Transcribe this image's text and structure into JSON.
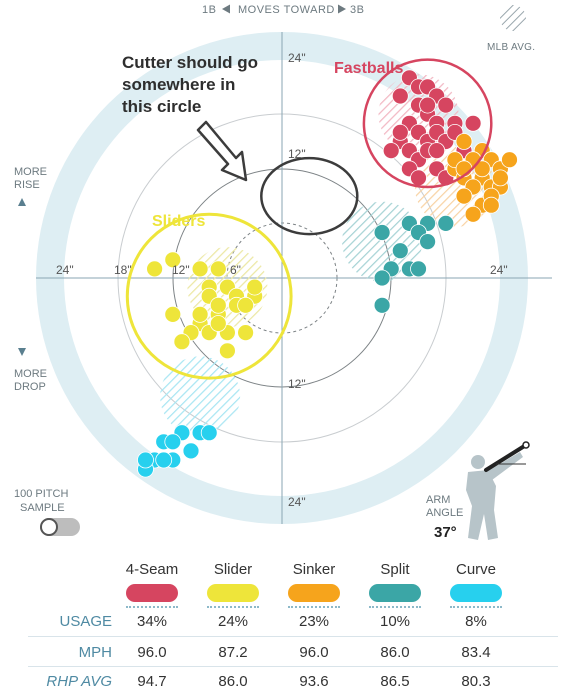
{
  "header": {
    "left": "1B",
    "center": "MOVES TOWARD",
    "right": "3B",
    "left_arrow_icon": "triangle-left-icon",
    "right_arrow_icon": "triangle-right-icon"
  },
  "legend": {
    "mlb_avg": "MLB AVG."
  },
  "side": {
    "more_rise_1": "MORE",
    "more_rise_2": "RISE",
    "more_drop_1": "MORE",
    "more_drop_2": "DROP",
    "sample_1": "100 PITCH",
    "sample_2": "SAMPLE"
  },
  "arm": {
    "label_1": "ARM",
    "label_2": "ANGLE",
    "value": "37°"
  },
  "annotations": {
    "cutter": [
      "Cutter should go",
      "somewhere in",
      "this circle"
    ],
    "fastballs": "Fastballs",
    "sliders": "Sliders"
  },
  "colors": {
    "fourseam": "#d64560",
    "slider": "#eee53a",
    "sinker": "#f6a41c",
    "split": "#3ba6a6",
    "curve": "#27d0ee",
    "field": "#deeef3"
  },
  "chart_data": {
    "type": "scatter",
    "xlabel": "",
    "ylabel": "",
    "x_ticks": [
      "24\"",
      "18\"",
      "12\"",
      "6\"",
      "24\""
    ],
    "y_ticks": [
      "24\"",
      "12\"",
      "12\"",
      "24\""
    ],
    "xlim": [
      -30,
      30
    ],
    "ylim": [
      -30,
      30
    ],
    "series": [
      {
        "name": "4-Seam",
        "color": "#d64560",
        "avg": [
          15,
          18
        ],
        "points": [
          [
            14,
            22
          ],
          [
            15,
            21
          ],
          [
            16,
            21
          ],
          [
            17,
            20
          ],
          [
            13,
            20
          ],
          [
            15,
            19
          ],
          [
            18,
            19
          ],
          [
            16,
            18
          ],
          [
            14,
            17
          ],
          [
            17,
            17
          ],
          [
            19,
            17
          ],
          [
            13,
            15
          ],
          [
            15,
            16
          ],
          [
            16,
            15
          ],
          [
            17,
            16
          ],
          [
            18,
            15
          ],
          [
            14,
            14
          ],
          [
            15,
            13
          ],
          [
            16,
            14
          ],
          [
            19,
            16
          ],
          [
            21,
            17
          ],
          [
            20,
            14
          ],
          [
            17,
            12
          ],
          [
            12,
            14
          ],
          [
            14,
            12
          ],
          [
            15,
            11
          ],
          [
            18,
            11
          ],
          [
            13,
            16
          ],
          [
            16,
            19
          ],
          [
            17,
            14
          ],
          [
            19,
            13
          ],
          [
            20,
            12
          ]
        ]
      },
      {
        "name": "Slider",
        "color": "#eee53a",
        "avg": [
          -6,
          -1
        ],
        "points": [
          [
            -14,
            1
          ],
          [
            -12,
            2
          ],
          [
            -9,
            1
          ],
          [
            -7,
            1
          ],
          [
            -6,
            -1
          ],
          [
            -8,
            -1
          ],
          [
            -5,
            -2
          ],
          [
            -3,
            -2
          ],
          [
            -12,
            -4
          ],
          [
            -9,
            -5
          ],
          [
            -7,
            -4
          ],
          [
            -5,
            -3
          ],
          [
            -4,
            -3
          ],
          [
            -8,
            -6
          ],
          [
            -6,
            -6
          ],
          [
            -4,
            -6
          ],
          [
            -10,
            -6
          ],
          [
            -7,
            -5
          ],
          [
            -9,
            -4
          ],
          [
            -3,
            -1
          ],
          [
            -8,
            -2
          ],
          [
            -6,
            -8
          ],
          [
            -11,
            -7
          ],
          [
            -7,
            -3
          ]
        ]
      },
      {
        "name": "Sinker",
        "color": "#f6a41c",
        "avg": [
          19,
          10
        ],
        "points": [
          [
            20,
            15
          ],
          [
            22,
            14
          ],
          [
            23,
            13
          ],
          [
            24,
            12
          ],
          [
            21,
            13
          ],
          [
            19,
            12
          ],
          [
            20,
            11
          ],
          [
            22,
            11
          ],
          [
            23,
            10
          ],
          [
            24,
            10
          ],
          [
            21,
            10
          ],
          [
            20,
            9
          ],
          [
            22,
            8
          ],
          [
            23,
            9
          ],
          [
            21,
            7
          ],
          [
            25,
            13
          ],
          [
            19,
            13
          ],
          [
            22,
            12
          ],
          [
            24,
            11
          ],
          [
            20,
            12
          ],
          [
            23,
            8
          ]
        ]
      },
      {
        "name": "Split",
        "color": "#3ba6a6",
        "avg": [
          11,
          4
        ],
        "points": [
          [
            14,
            6
          ],
          [
            16,
            6
          ],
          [
            15,
            5
          ],
          [
            16,
            4
          ],
          [
            11,
            5
          ],
          [
            18,
            6
          ],
          [
            13,
            3
          ],
          [
            14,
            1
          ],
          [
            15,
            1
          ],
          [
            12,
            1
          ],
          [
            11,
            0
          ],
          [
            11,
            -3
          ]
        ]
      },
      {
        "name": "Curve",
        "color": "#27d0ee",
        "avg": [
          -9,
          -13
        ],
        "points": [
          [
            -11,
            -17
          ],
          [
            -13,
            -18
          ],
          [
            -12,
            -18
          ],
          [
            -9,
            -17
          ],
          [
            -8,
            -17
          ],
          [
            -10,
            -19
          ],
          [
            -12,
            -20
          ],
          [
            -14,
            -20
          ],
          [
            -13,
            -20
          ],
          [
            -15,
            -21
          ],
          [
            -15,
            -20
          ]
        ]
      }
    ],
    "annotation_circles": [
      {
        "label": "Cutter should go somewhere in this circle",
        "cx": 3,
        "cy": 9,
        "r": 6
      },
      {
        "label": "Fastballs",
        "cx": 16,
        "cy": 17,
        "r": 7
      },
      {
        "label": "Sliders",
        "cx": -8,
        "cy": -2,
        "r": 9
      }
    ]
  },
  "table": {
    "headers": [
      "4-Seam",
      "Slider",
      "Sinker",
      "Split",
      "Curve"
    ],
    "rows": [
      {
        "label": "USAGE",
        "values": [
          "34%",
          "24%",
          "23%",
          "10%",
          "8%"
        ]
      },
      {
        "label": "MPH",
        "values": [
          "96.0",
          "87.2",
          "96.0",
          "86.0",
          "83.4"
        ]
      },
      {
        "label": "RHP AVG",
        "values": [
          "94.7",
          "86.0",
          "93.6",
          "86.5",
          "80.3"
        ]
      }
    ]
  }
}
